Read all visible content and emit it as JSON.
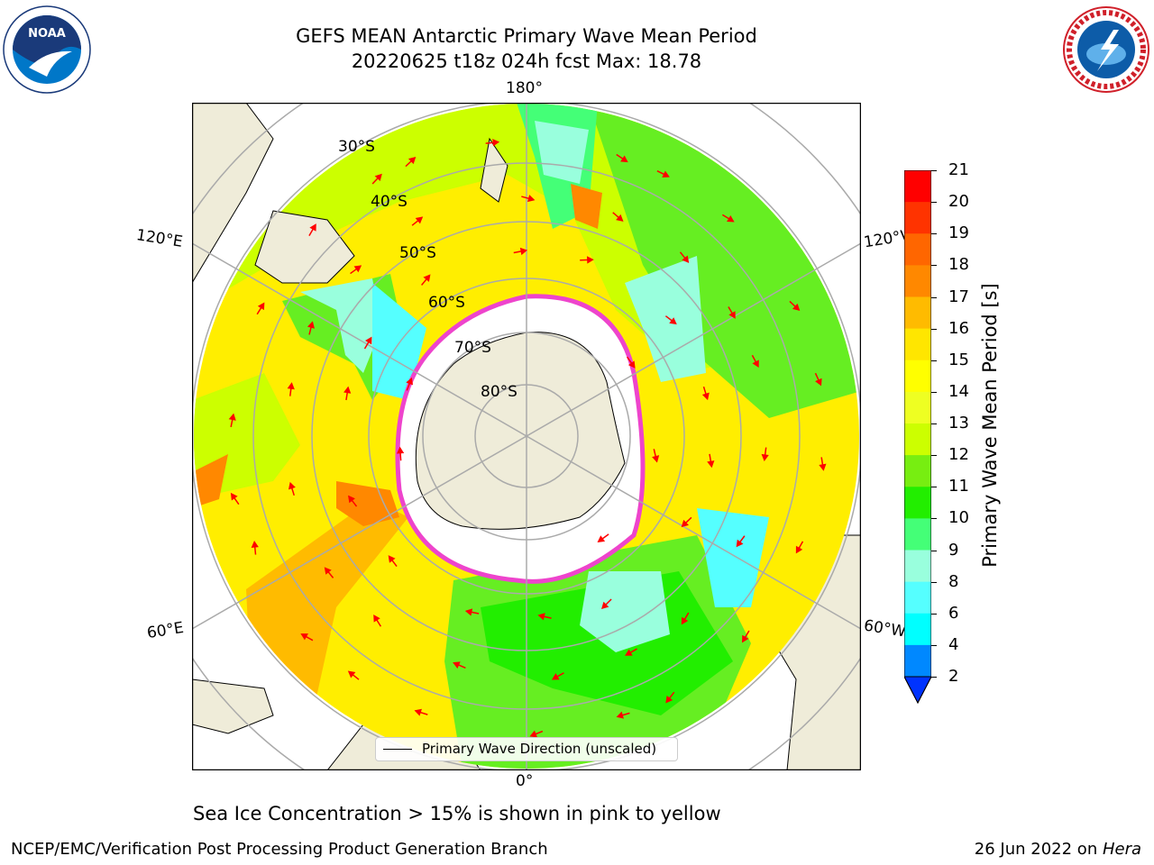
{
  "title": {
    "line1": "GEFS MEAN Antarctic Primary Wave Mean Period",
    "line2": "20220625 t18z 024h fcst   Max: 18.78"
  },
  "map": {
    "projection": "south-polar-stereographic",
    "longitude_labels": [
      "180°",
      "120°E",
      "120°W",
      "60°E",
      "60°W",
      "0°"
    ],
    "latitude_labels": [
      "30°S",
      "40°S",
      "50°S",
      "60°S",
      "70°S",
      "80°S"
    ],
    "field": "Primary Wave Mean Period",
    "max_value": 18.78,
    "sea_ice_color": "#ee44cc",
    "land_color": "#efecd9",
    "arrow_color": "#ff0000"
  },
  "colorbar": {
    "label": "Primary Wave Mean Period [s]",
    "ticks": [
      "21",
      "20",
      "19",
      "18",
      "17",
      "16",
      "15",
      "14",
      "13",
      "12",
      "11",
      "10",
      "9",
      "8",
      "6",
      "4",
      "2"
    ],
    "colors": [
      "#ff0000",
      "#ff3300",
      "#ff6600",
      "#ff8800",
      "#ffbb00",
      "#ffe600",
      "#ffff00",
      "#eeff22",
      "#ccff00",
      "#77ee11",
      "#22ee00",
      "#44ff77",
      "#99ffdd",
      "#55ffff",
      "#00ffff",
      "#0088ff",
      "#0033ff"
    ]
  },
  "legend": {
    "label": "Primary Wave Direction (unscaled)"
  },
  "note": "Sea Ice Concentration > 15% is shown in pink to yellow",
  "footer": {
    "left": "NCEP/EMC/Verification Post Processing Product Generation Branch",
    "right_prefix": "26 Jun 2022 on ",
    "right_host": "Hera"
  },
  "logos": {
    "left": "NOAA",
    "right_text": "NATIONAL WEATHER SERVICE"
  }
}
